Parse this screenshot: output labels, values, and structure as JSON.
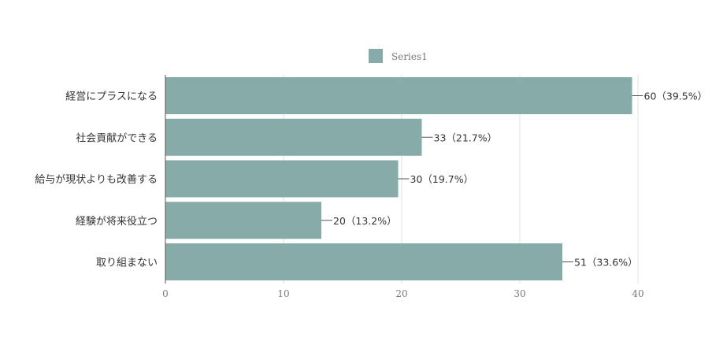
{
  "chart_data": {
    "type": "bar",
    "orientation": "horizontal",
    "categories": [
      "経営にプラスになる",
      "社会貢献ができる",
      "給与が現状よりも改善する",
      "経験が将来役立つ",
      "取り組まない"
    ],
    "series": [
      {
        "name": "Series1",
        "values": [
          39.5,
          21.7,
          19.7,
          13.2,
          33.6
        ],
        "data_labels": [
          "60（39.5%）",
          "33（21.7%）",
          "30（19.7%）",
          "20（13.2%）",
          "51（33.6%）"
        ]
      }
    ],
    "x_ticks": [
      "0",
      "10",
      "20",
      "30",
      "40"
    ],
    "xlim": [
      0,
      40
    ],
    "grid": true,
    "legend": "top-center",
    "bar_color": "#86aba8",
    "title": "",
    "xlabel": "",
    "ylabel": ""
  }
}
